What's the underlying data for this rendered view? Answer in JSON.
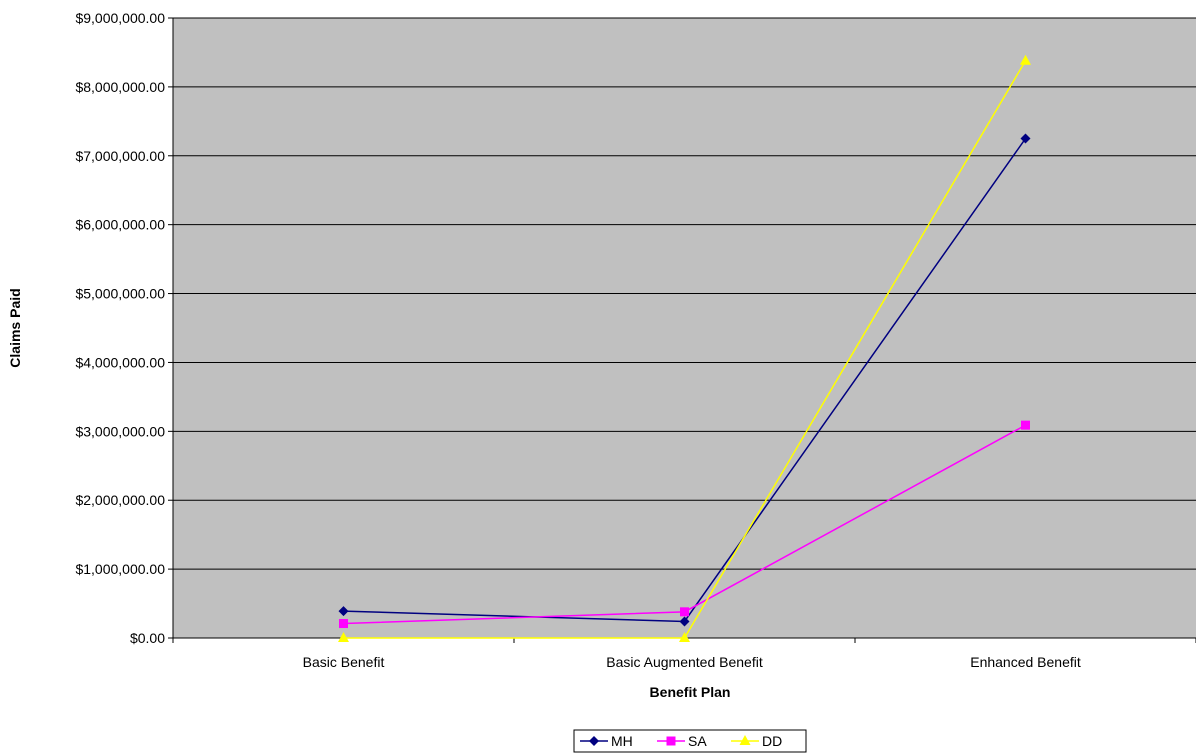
{
  "chart_data": {
    "type": "line",
    "title": "",
    "xlabel": "Benefit Plan",
    "ylabel": "Claims Paid",
    "categories": [
      "Basic Benefit",
      "Basic Augmented Benefit",
      "Enhanced Benefit"
    ],
    "ylim": [
      0,
      9000000
    ],
    "yticks": [
      0,
      1000000,
      2000000,
      3000000,
      4000000,
      5000000,
      6000000,
      7000000,
      8000000,
      9000000
    ],
    "ytick_labels": [
      "$0.00",
      "$1,000,000.00",
      "$2,000,000.00",
      "$3,000,000.00",
      "$4,000,000.00",
      "$5,000,000.00",
      "$6,000,000.00",
      "$7,000,000.00",
      "$8,000,000.00",
      "$9,000,000.00"
    ],
    "grid": true,
    "legend": "bottom",
    "plot_background": "#c0c0c0",
    "series": [
      {
        "name": "MH",
        "values": [
          390000,
          240000,
          7250000
        ],
        "color": "#000080",
        "marker": "diamond"
      },
      {
        "name": "SA",
        "values": [
          210000,
          380000,
          3090000
        ],
        "color": "#ff00ff",
        "marker": "square"
      },
      {
        "name": "DD",
        "values": [
          0,
          0,
          8380000
        ],
        "color": "#ffff00",
        "marker": "triangle"
      }
    ]
  }
}
